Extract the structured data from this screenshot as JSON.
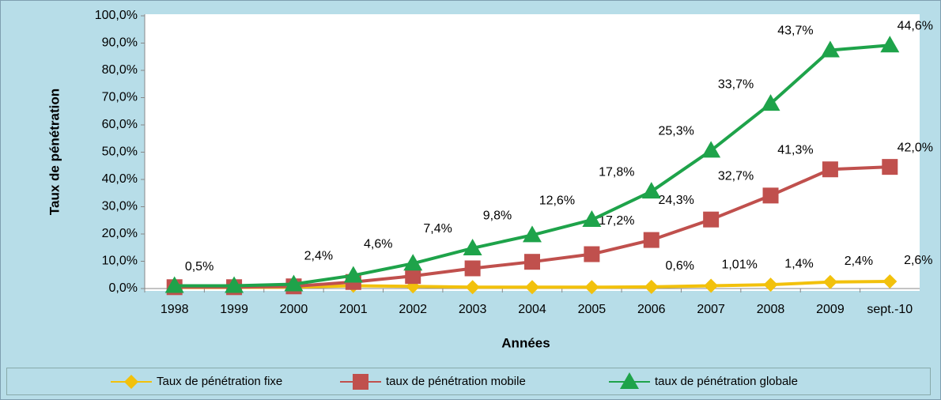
{
  "chart_data": {
    "type": "line",
    "stacked": true,
    "x_label": "Années",
    "y_label": "Taux de pénétration",
    "categories": [
      "1998",
      "1999",
      "2000",
      "2001",
      "2002",
      "2003",
      "2004",
      "2005",
      "2006",
      "2007",
      "2008",
      "2009",
      "sept.-10"
    ],
    "series": [
      {
        "name": "Taux de pénétration fixe",
        "color": "#f2c10c",
        "marker": "diamond",
        "values": [
          0.4,
          0.4,
          0.5,
          1.0,
          0.8,
          0.5,
          0.5,
          0.5,
          0.6,
          1.01,
          1.4,
          2.4,
          2.6
        ],
        "value_labels": [
          null,
          null,
          null,
          null,
          null,
          null,
          null,
          null,
          "0,6%",
          "1,01%",
          "1,4%",
          "2,4%",
          "2,6%"
        ]
      },
      {
        "name": "taux de pénétration mobile",
        "color": "#c0504d",
        "marker": "square",
        "values": [
          0.1,
          0.1,
          0.3,
          1.4,
          3.8,
          6.9,
          9.3,
          12.1,
          17.2,
          24.3,
          32.7,
          41.3,
          42.0
        ],
        "value_labels": [
          null,
          null,
          null,
          null,
          null,
          null,
          null,
          null,
          "17,2%",
          "24,3%",
          "32,7%",
          "41,3%",
          "42,0%"
        ]
      },
      {
        "name": "taux de pénétration globale",
        "color": "#1ea34a",
        "marker": "triangle",
        "values": [
          0.5,
          0.5,
          0.8,
          2.4,
          4.6,
          7.4,
          9.8,
          12.6,
          17.8,
          25.3,
          33.7,
          43.7,
          44.6
        ],
        "value_labels": [
          null,
          "0,5%",
          null,
          "2,4%",
          "4,6%",
          "7,4%",
          "9,8%",
          "12,6%",
          "17,8%",
          "25,3%",
          "33,7%",
          "43,7%",
          "44,6%"
        ]
      }
    ],
    "ylim": [
      0,
      100
    ],
    "yticks": [
      {
        "value": 0,
        "label": "0,0%"
      },
      {
        "value": 10,
        "label": "10,0%"
      },
      {
        "value": 20,
        "label": "20,0%"
      },
      {
        "value": 30,
        "label": "30,0%"
      },
      {
        "value": 40,
        "label": "40,0%"
      },
      {
        "value": 50,
        "label": "50,0%"
      },
      {
        "value": 60,
        "label": "60,0%"
      },
      {
        "value": 70,
        "label": "70,0%"
      },
      {
        "value": 80,
        "label": "80,0%"
      },
      {
        "value": 90,
        "label": "90,0%"
      },
      {
        "value": 100,
        "label": "100,0%"
      }
    ],
    "grid": false,
    "legend": "bottom"
  }
}
